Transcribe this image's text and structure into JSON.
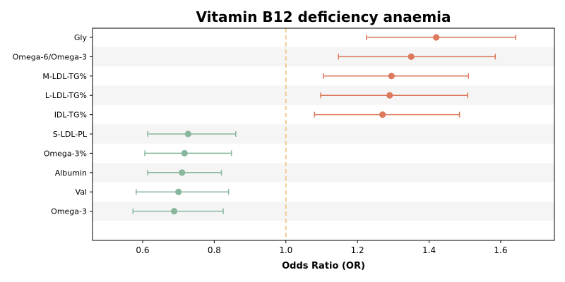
{
  "chart_data": {
    "type": "forest",
    "title": "Vitamin B12 deficiency anaemia",
    "xlabel": "Odds Ratio (OR)",
    "ylabel": "",
    "xlim": [
      0.46,
      1.75
    ],
    "x_ticks": [
      0.6,
      0.8,
      1.0,
      1.2,
      1.4,
      1.6
    ],
    "x_tick_labels": [
      "0.6",
      "0.8",
      "1.0",
      "1.2",
      "1.4",
      "1.6"
    ],
    "reference_line": 1.0,
    "reference_color": "#f0c27b",
    "colors": {
      "risk": "#dd7a5e",
      "protective": "#88b79c",
      "band": "#f5f5f5"
    },
    "grid": false,
    "items": [
      {
        "label": "Gly",
        "or": 1.42,
        "lower": 1.225,
        "upper": 1.642,
        "group": "risk"
      },
      {
        "label": "Omega-6/Omega-3",
        "or": 1.35,
        "lower": 1.147,
        "upper": 1.585,
        "group": "risk"
      },
      {
        "label": "M-LDL-TG%",
        "or": 1.295,
        "lower": 1.105,
        "upper": 1.51,
        "group": "risk"
      },
      {
        "label": "L-LDL-TG%",
        "or": 1.29,
        "lower": 1.097,
        "upper": 1.508,
        "group": "risk"
      },
      {
        "label": "IDL-TG%",
        "or": 1.27,
        "lower": 1.08,
        "upper": 1.485,
        "group": "risk"
      },
      {
        "label": "S-LDL-PL",
        "or": 0.727,
        "lower": 0.614,
        "upper": 0.86,
        "group": "protective"
      },
      {
        "label": "Omega-3%",
        "or": 0.717,
        "lower": 0.606,
        "upper": 0.848,
        "group": "protective"
      },
      {
        "label": "Albumin",
        "or": 0.71,
        "lower": 0.614,
        "upper": 0.82,
        "group": "protective"
      },
      {
        "label": "Val",
        "or": 0.7,
        "lower": 0.582,
        "upper": 0.84,
        "group": "protective"
      },
      {
        "label": "Omega-3",
        "or": 0.688,
        "lower": 0.573,
        "upper": 0.825,
        "group": "protective"
      }
    ]
  }
}
